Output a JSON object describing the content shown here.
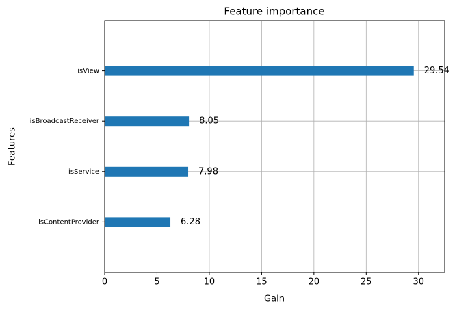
{
  "chart_data": {
    "type": "barh",
    "title": "Feature importance",
    "xlabel": "Gain",
    "ylabel": "Features",
    "categories": [
      "isView",
      "isBroadcastReceiver",
      "isService",
      "isContentProvider"
    ],
    "values": [
      29.54,
      8.05,
      7.98,
      6.28
    ],
    "color": "#1f77b4",
    "xlim": [
      0,
      32.5
    ],
    "xticks": [
      0,
      5,
      10,
      15,
      20,
      25,
      30
    ],
    "grid": true
  }
}
